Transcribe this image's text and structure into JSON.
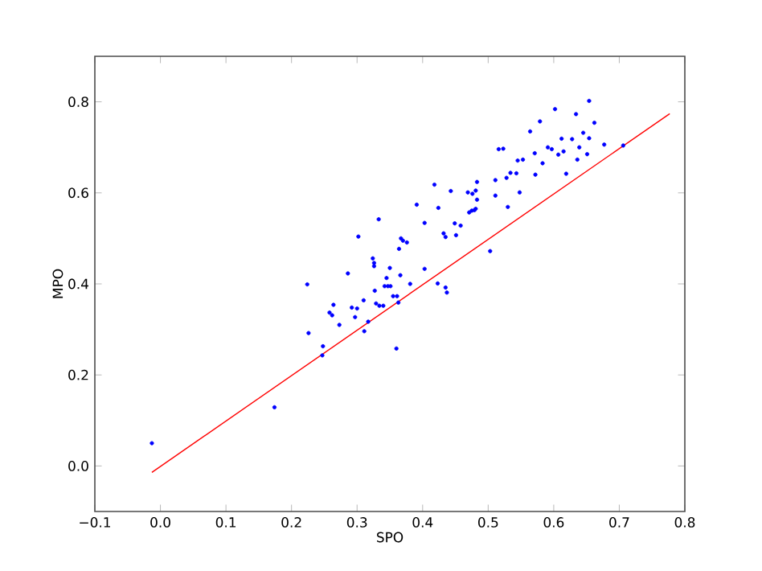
{
  "chart_data": {
    "type": "scatter",
    "xlabel": "SPO",
    "ylabel": "MPO",
    "xlim": [
      -0.1,
      0.8
    ],
    "ylim": [
      -0.1,
      0.9
    ],
    "xticks": [
      {
        "value": -0.1,
        "label": "−0.1"
      },
      {
        "value": 0,
        "label": "0.0"
      },
      0.1,
      0.2,
      0.3,
      0.4,
      0.5,
      0.6,
      0.7,
      0.8
    ],
    "yticks": [
      {
        "value": 0,
        "label": "0.0"
      },
      0.2,
      0.4,
      0.6,
      0.8
    ],
    "series": [
      {
        "type": "scatter",
        "color": "#0000ff",
        "marker": "circle",
        "x": [
          -0.013,
          0.174,
          0.224,
          0.226,
          0.248,
          0.247,
          0.258,
          0.262,
          0.264,
          0.273,
          0.286,
          0.292,
          0.297,
          0.3,
          0.302,
          0.31,
          0.311,
          0.317,
          0.324,
          0.326,
          0.326,
          0.327,
          0.329,
          0.333,
          0.334,
          0.34,
          0.342,
          0.345,
          0.347,
          0.35,
          0.351,
          0.355,
          0.36,
          0.361,
          0.363,
          0.364,
          0.366,
          0.367,
          0.37,
          0.376,
          0.381,
          0.391,
          0.403,
          0.403,
          0.418,
          0.423,
          0.424,
          0.432,
          0.435,
          0.435,
          0.437,
          0.443,
          0.449,
          0.451,
          0.458,
          0.469,
          0.471,
          0.475,
          0.476,
          0.479,
          0.481,
          0.481,
          0.483,
          0.483,
          0.503,
          0.511,
          0.511,
          0.516,
          0.523,
          0.528,
          0.53,
          0.534,
          0.543,
          0.545,
          0.548,
          0.553,
          0.564,
          0.571,
          0.572,
          0.579,
          0.583,
          0.591,
          0.597,
          0.602,
          0.607,
          0.612,
          0.615,
          0.619,
          0.628,
          0.634,
          0.636,
          0.639,
          0.645,
          0.651,
          0.654,
          0.654,
          0.662,
          0.677,
          0.706
        ],
        "values": [
          0.05,
          0.129,
          0.399,
          0.292,
          0.263,
          0.243,
          0.337,
          0.331,
          0.354,
          0.31,
          0.423,
          0.348,
          0.327,
          0.346,
          0.504,
          0.364,
          0.296,
          0.317,
          0.456,
          0.446,
          0.439,
          0.385,
          0.357,
          0.542,
          0.352,
          0.352,
          0.395,
          0.413,
          0.395,
          0.435,
          0.395,
          0.373,
          0.258,
          0.373,
          0.359,
          0.477,
          0.419,
          0.5,
          0.495,
          0.491,
          0.4,
          0.574,
          0.433,
          0.534,
          0.618,
          0.401,
          0.567,
          0.511,
          0.503,
          0.392,
          0.381,
          0.604,
          0.533,
          0.507,
          0.528,
          0.601,
          0.557,
          0.561,
          0.598,
          0.562,
          0.565,
          0.605,
          0.585,
          0.624,
          0.472,
          0.594,
          0.628,
          0.696,
          0.697,
          0.633,
          0.569,
          0.644,
          0.643,
          0.671,
          0.601,
          0.673,
          0.735,
          0.687,
          0.64,
          0.757,
          0.665,
          0.7,
          0.696,
          0.784,
          0.684,
          0.719,
          0.691,
          0.642,
          0.718,
          0.773,
          0.673,
          0.7,
          0.732,
          0.685,
          0.802,
          0.72,
          0.754,
          0.706,
          0.704
        ]
      },
      {
        "type": "line",
        "color": "#ff0000",
        "marker": "none",
        "line_style": "solid",
        "x": [
          -0.013,
          0.777
        ],
        "values": [
          -0.014,
          0.774
        ]
      }
    ]
  }
}
